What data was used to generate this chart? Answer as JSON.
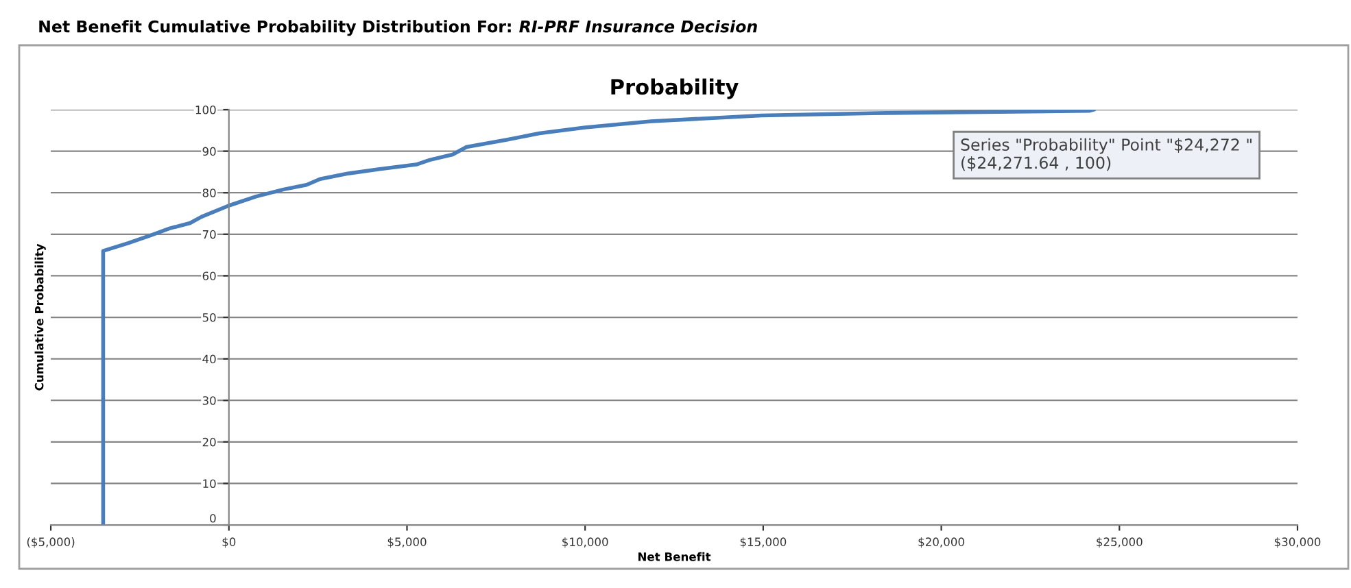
{
  "chart_data": {
    "type": "line",
    "title": "Probability",
    "xlabel": "Net Benefit",
    "ylabel": "Cumulative Probability",
    "annotations": [
      "Net Benefit Cumulative Probability Distribution For:",
      "RI-PRF Insurance Decision",
      {
        "text": "Series \"Probability\" Point \"$24,272 \"\n($24,271.64 , 100)",
        "x": 24271.64,
        "y": 100
      }
    ],
    "series": [
      {
        "color": "#4a7ebb",
        "x": [
          -3530,
          -3530,
          -2820,
          -2180,
          -1670,
          -1090,
          -770,
          0,
          770,
          1540,
          2180,
          2560,
          3330,
          4230,
          5260,
          5640,
          6280,
          6670,
          7820,
          8720,
          10000,
          11850,
          14950,
          18480,
          24150,
          24271.64
        ],
        "values": [
          0,
          66,
          67.9,
          69.8,
          71.4,
          72.7,
          74.2,
          76.9,
          79.1,
          80.8,
          81.9,
          83.3,
          84.6,
          85.7,
          86.8,
          87.9,
          89.2,
          91.0,
          92.8,
          94.3,
          95.7,
          97.2,
          98.6,
          99.2,
          99.7,
          100
        ]
      }
    ],
    "xlim": [
      -5000,
      30000
    ],
    "xticks": [
      {
        "value": -5000,
        "label": "($5,000)"
      },
      {
        "value": 0,
        "label": "$0"
      },
      {
        "value": 5000,
        "label": "$5,000"
      },
      {
        "value": 10000,
        "label": "$10,000"
      },
      {
        "value": 15000,
        "label": "$15,000"
      },
      {
        "value": 20000,
        "label": "$20,000"
      },
      {
        "value": 25000,
        "label": "$25,000"
      },
      {
        "value": 30000,
        "label": "$30,000"
      }
    ],
    "ylim": [
      0,
      100
    ],
    "yticks": [
      0,
      10,
      20,
      30,
      40,
      50,
      60,
      70,
      80,
      90,
      100
    ],
    "grid": "y",
    "marker": "none",
    "line_style": "solid",
    "legend": false
  }
}
